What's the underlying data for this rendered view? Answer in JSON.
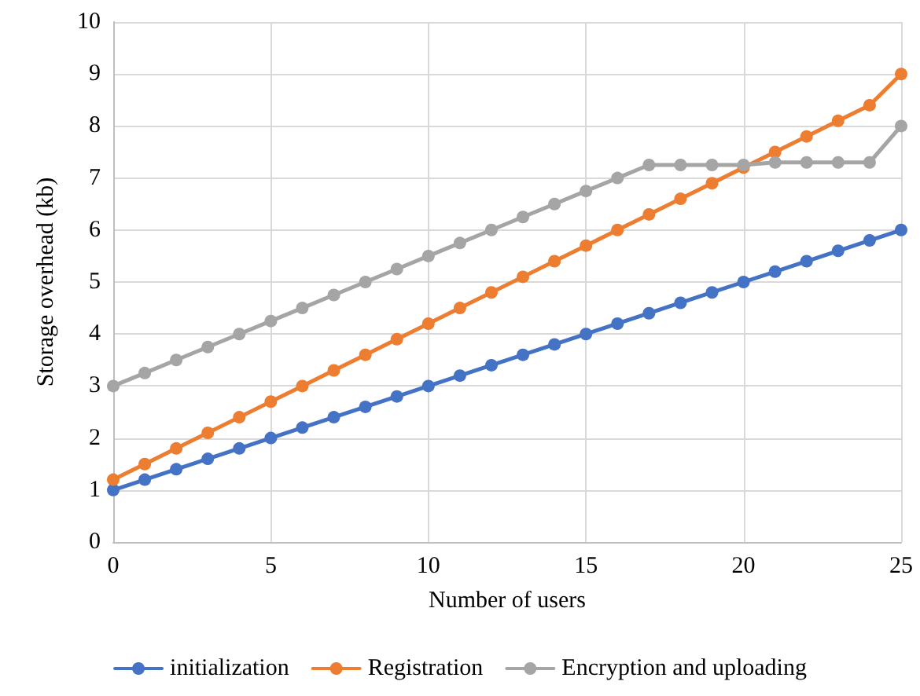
{
  "chart_data": {
    "type": "line",
    "xlabel": "Number of users",
    "ylabel": "Storage overhead (kb)",
    "x": [
      0,
      1,
      2,
      3,
      4,
      5,
      6,
      7,
      8,
      9,
      10,
      11,
      12,
      13,
      14,
      15,
      16,
      17,
      18,
      19,
      20,
      21,
      22,
      23,
      24,
      25
    ],
    "series": [
      {
        "name": "initialization",
        "color": "#4472c4",
        "values": [
          1,
          1.2,
          1.4,
          1.6,
          1.8,
          2,
          2.2,
          2.4,
          2.6,
          2.8,
          3,
          3.2,
          3.4,
          3.6,
          3.8,
          4,
          4.2,
          4.4,
          4.6,
          4.8,
          5,
          5.2,
          5.4,
          5.6,
          5.8,
          6
        ]
      },
      {
        "name": "Registration",
        "color": "#ed7d31",
        "values": [
          1.2,
          1.5,
          1.8,
          2.1,
          2.4,
          2.7,
          3,
          3.3,
          3.6,
          3.9,
          4.2,
          4.5,
          4.8,
          5.1,
          5.4,
          5.7,
          6,
          6.3,
          6.6,
          6.9,
          7.2,
          7.5,
          7.8,
          8.1,
          8.4,
          9
        ]
      },
      {
        "name": "Encryption and uploading",
        "color": "#a5a5a5",
        "values": [
          3,
          3.25,
          3.5,
          3.75,
          4,
          4.25,
          4.5,
          4.75,
          5,
          5.25,
          5.5,
          5.75,
          6,
          6.25,
          6.5,
          6.75,
          7,
          7.25,
          7.25,
          7.25,
          7.25,
          7.3,
          7.3,
          7.3,
          7.3,
          8
        ]
      }
    ],
    "xlim": [
      0,
      25
    ],
    "xticks": [
      0,
      5,
      10,
      15,
      20,
      25
    ],
    "ylim": [
      0,
      10
    ],
    "yticks": [
      0,
      1,
      2,
      3,
      4,
      5,
      6,
      7,
      8,
      9,
      10
    ],
    "grid": true,
    "legend": "bottom",
    "marker": "circle",
    "line_style": "solid"
  }
}
